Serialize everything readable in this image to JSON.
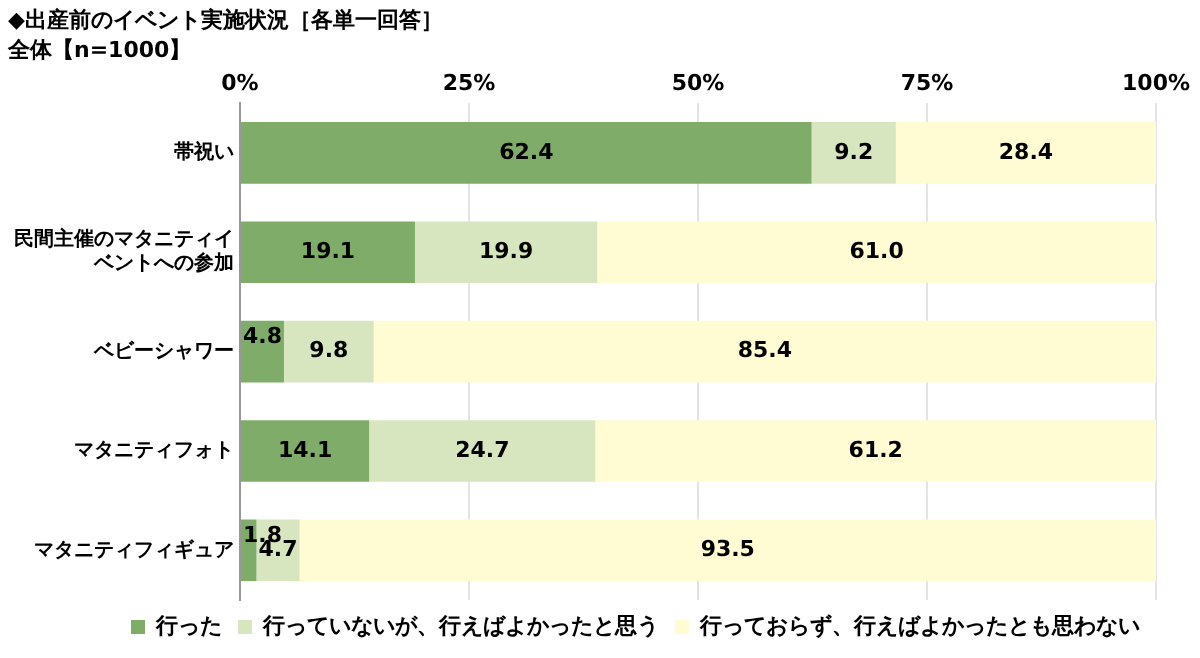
{
  "chart_data": {
    "type": "bar",
    "orientation": "horizontal",
    "stacked": true,
    "title": "◆出産前のイベント実施状況［各単一回答］",
    "subtitle": "全体【n=1000】",
    "categories": [
      "帯祝い",
      "民間主催のマタニティイベントへの参加",
      "ベビーシャワー",
      "マタニティフォト",
      "マタニティフィギュア"
    ],
    "series": [
      {
        "name": "行った",
        "color": "#7fac68",
        "values": [
          62.4,
          19.1,
          4.8,
          14.1,
          1.8
        ],
        "value_labels": [
          "62.4",
          "19.1",
          "4.8",
          "14.1",
          "1.8"
        ]
      },
      {
        "name": "行っていないが、行えばよかったと思う",
        "color": "#d8e6c0",
        "values": [
          9.2,
          19.9,
          9.8,
          24.7,
          4.7
        ],
        "value_labels": [
          "9.2",
          "19.9",
          "9.8",
          "24.7",
          "4.7"
        ]
      },
      {
        "name": "行っておらず、行えばよかったとも思わない",
        "color": "#fffbd2",
        "values": [
          28.4,
          61.0,
          85.4,
          61.2,
          93.5
        ],
        "value_labels": [
          "28.4",
          "61.0",
          "85.4",
          "61.2",
          "93.5"
        ]
      }
    ],
    "xlim": [
      0,
      100
    ],
    "xticks": [
      {
        "value": 0,
        "label": "0%"
      },
      {
        "value": 25,
        "label": "25%"
      },
      {
        "value": 50,
        "label": "50%"
      },
      {
        "value": 75,
        "label": "75%"
      },
      {
        "value": 100,
        "label": "100%"
      }
    ],
    "grid": "x",
    "legend": "bottom"
  }
}
